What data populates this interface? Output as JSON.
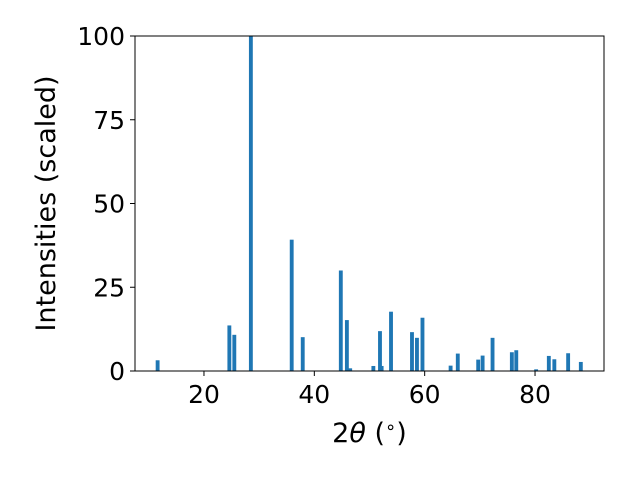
{
  "chart_data": {
    "type": "bar",
    "xlabel": "2θ (°)",
    "xlabel_parts": {
      "prefix": "2",
      "symbol": "θ",
      "suffix": " (",
      "degree": "∘",
      "close": ")"
    },
    "ylabel": "Intensities (scaled)",
    "xlim": [
      7.5,
      92.5
    ],
    "ylim": [
      0,
      100
    ],
    "xticks": [
      20,
      40,
      60,
      80
    ],
    "yticks": [
      0,
      25,
      50,
      75,
      100
    ],
    "bar_width": 0.7,
    "bar_color": "#1f77b4",
    "grid": false,
    "x": [
      11.6,
      24.6,
      25.5,
      28.5,
      35.9,
      37.9,
      44.8,
      45.9,
      46.5,
      50.7,
      51.9,
      52.2,
      53.9,
      57.7,
      58.6,
      59.6,
      64.7,
      66.0,
      69.7,
      70.5,
      72.3,
      75.8,
      76.6,
      80.2,
      82.5,
      83.5,
      86.0,
      88.3
    ],
    "values": [
      3.2,
      13.6,
      10.8,
      100,
      39.2,
      10.1,
      30.0,
      15.2,
      0.8,
      1.5,
      11.9,
      1.5,
      17.7,
      11.6,
      9.9,
      15.9,
      1.6,
      5.2,
      3.4,
      4.6,
      9.9,
      5.6,
      6.2,
      0.5,
      4.5,
      3.5,
      5.3,
      2.7
    ]
  }
}
